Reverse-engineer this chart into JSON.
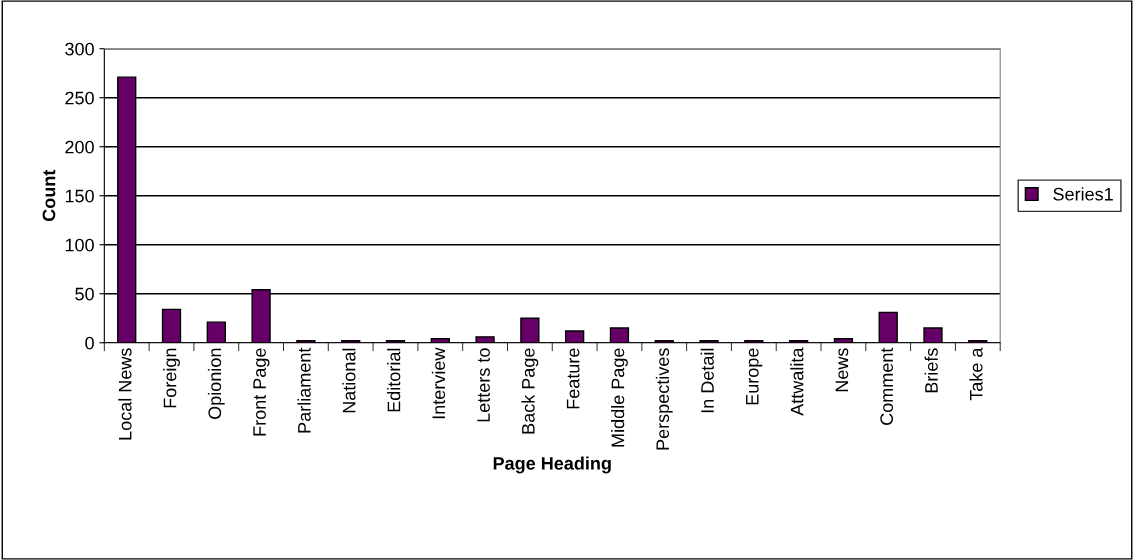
{
  "chart_data": {
    "type": "bar",
    "xlabel": "Page Heading",
    "ylabel": "Count",
    "categories": [
      "Local News",
      "Foreign",
      "Opionion",
      "Front Page",
      "Parliament",
      "National",
      "Editorial",
      "Interview",
      "Letters to",
      "Back Page",
      "Feature",
      "Middle Page",
      "Perspectives",
      "In Detail",
      "Europe",
      "Attwalita",
      "News",
      "Comment",
      "Briefs",
      "Take a"
    ],
    "series": [
      {
        "name": "Series1",
        "color": "#660066",
        "values": [
          271,
          34,
          21,
          54,
          2,
          2,
          2,
          4,
          6,
          25,
          12,
          15,
          2,
          2,
          2,
          2,
          4,
          31,
          15,
          2
        ]
      }
    ],
    "ylim": [
      0,
      300
    ],
    "yticks": [
      0,
      50,
      100,
      150,
      200,
      250,
      300
    ],
    "grid": "y",
    "legend": "right"
  }
}
